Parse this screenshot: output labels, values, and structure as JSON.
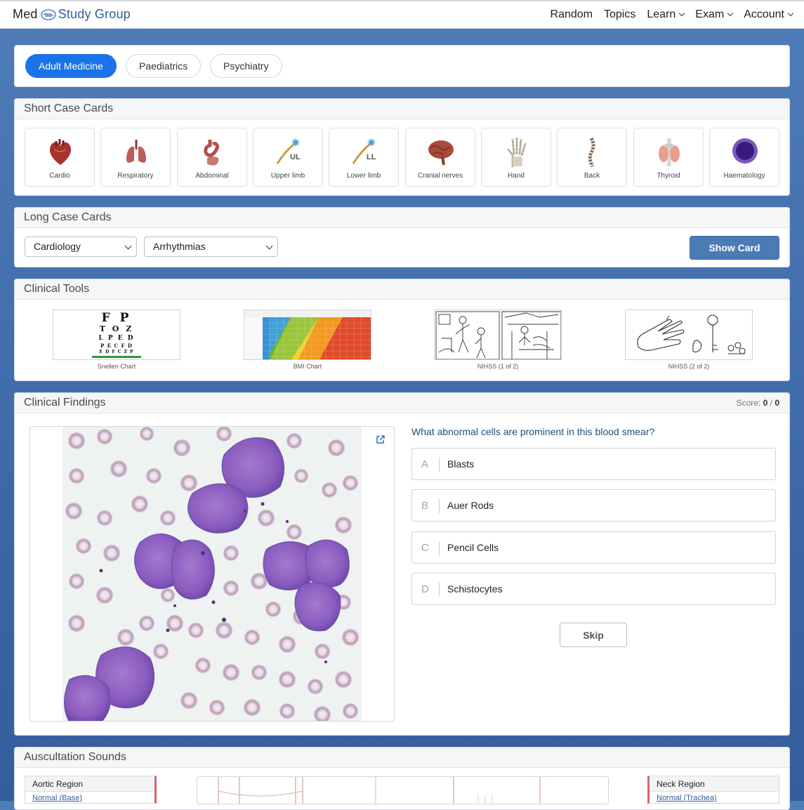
{
  "brand": {
    "part1": "Med",
    "part2": "Study Group"
  },
  "nav": {
    "random": "Random",
    "topics": "Topics",
    "learn": "Learn",
    "exam": "Exam",
    "account": "Account"
  },
  "tabs": [
    {
      "label": "Adult Medicine",
      "active": true
    },
    {
      "label": "Paediatrics",
      "active": false
    },
    {
      "label": "Psychiatry",
      "active": false
    }
  ],
  "short_case": {
    "title": "Short Case Cards",
    "items": [
      {
        "label": "Cardio",
        "icon": "heart-icon"
      },
      {
        "label": "Respiratory",
        "icon": "lungs-icon"
      },
      {
        "label": "Abdominal",
        "icon": "stomach-icon"
      },
      {
        "label": "Upper limb",
        "icon": "nerve-ul-icon",
        "badge": "UL"
      },
      {
        "label": "Lower limb",
        "icon": "nerve-ll-icon",
        "badge": "LL"
      },
      {
        "label": "Cranial nerves",
        "icon": "brain-icon"
      },
      {
        "label": "Hand",
        "icon": "hand-icon"
      },
      {
        "label": "Back",
        "icon": "spine-icon"
      },
      {
        "label": "Thyroid",
        "icon": "thyroid-icon"
      },
      {
        "label": "Haematology",
        "icon": "blood-cell-icon"
      }
    ]
  },
  "long_case": {
    "title": "Long Case Cards",
    "specialty": "Cardiology",
    "topic": "Arrhythmias",
    "button": "Show Card"
  },
  "tools": {
    "title": "Clinical Tools",
    "items": [
      {
        "label": "Snellen Chart",
        "lines": [
          "F P",
          "T O Z",
          "L P E D",
          "P E C F D",
          "E D F C Z P"
        ]
      },
      {
        "label": "BMI Chart"
      },
      {
        "label": "NIHSS (1 of 2)"
      },
      {
        "label": "NIHSS (2 of 2)"
      }
    ]
  },
  "findings": {
    "title": "Clinical Findings",
    "score_label": "Score:",
    "score_value": "0",
    "score_sep": "/",
    "score_total": "0",
    "question": "What abnormal cells are prominent in this blood smear?",
    "options": [
      {
        "letter": "A",
        "text": "Blasts"
      },
      {
        "letter": "B",
        "text": "Auer Rods"
      },
      {
        "letter": "C",
        "text": "Pencil Cells"
      },
      {
        "letter": "D",
        "text": "Schistocytes"
      }
    ],
    "skip": "Skip"
  },
  "auscultation": {
    "title": "Auscultation Sounds",
    "left_region": {
      "title": "Aortic Region",
      "link": "Normal (Base)"
    },
    "right_region": {
      "title": "Neck Region",
      "link": "Normal (Trachea)"
    }
  },
  "colors": {
    "primary": "#1a73e8",
    "button": "#4b7bb5",
    "background": "#4f7db8"
  }
}
